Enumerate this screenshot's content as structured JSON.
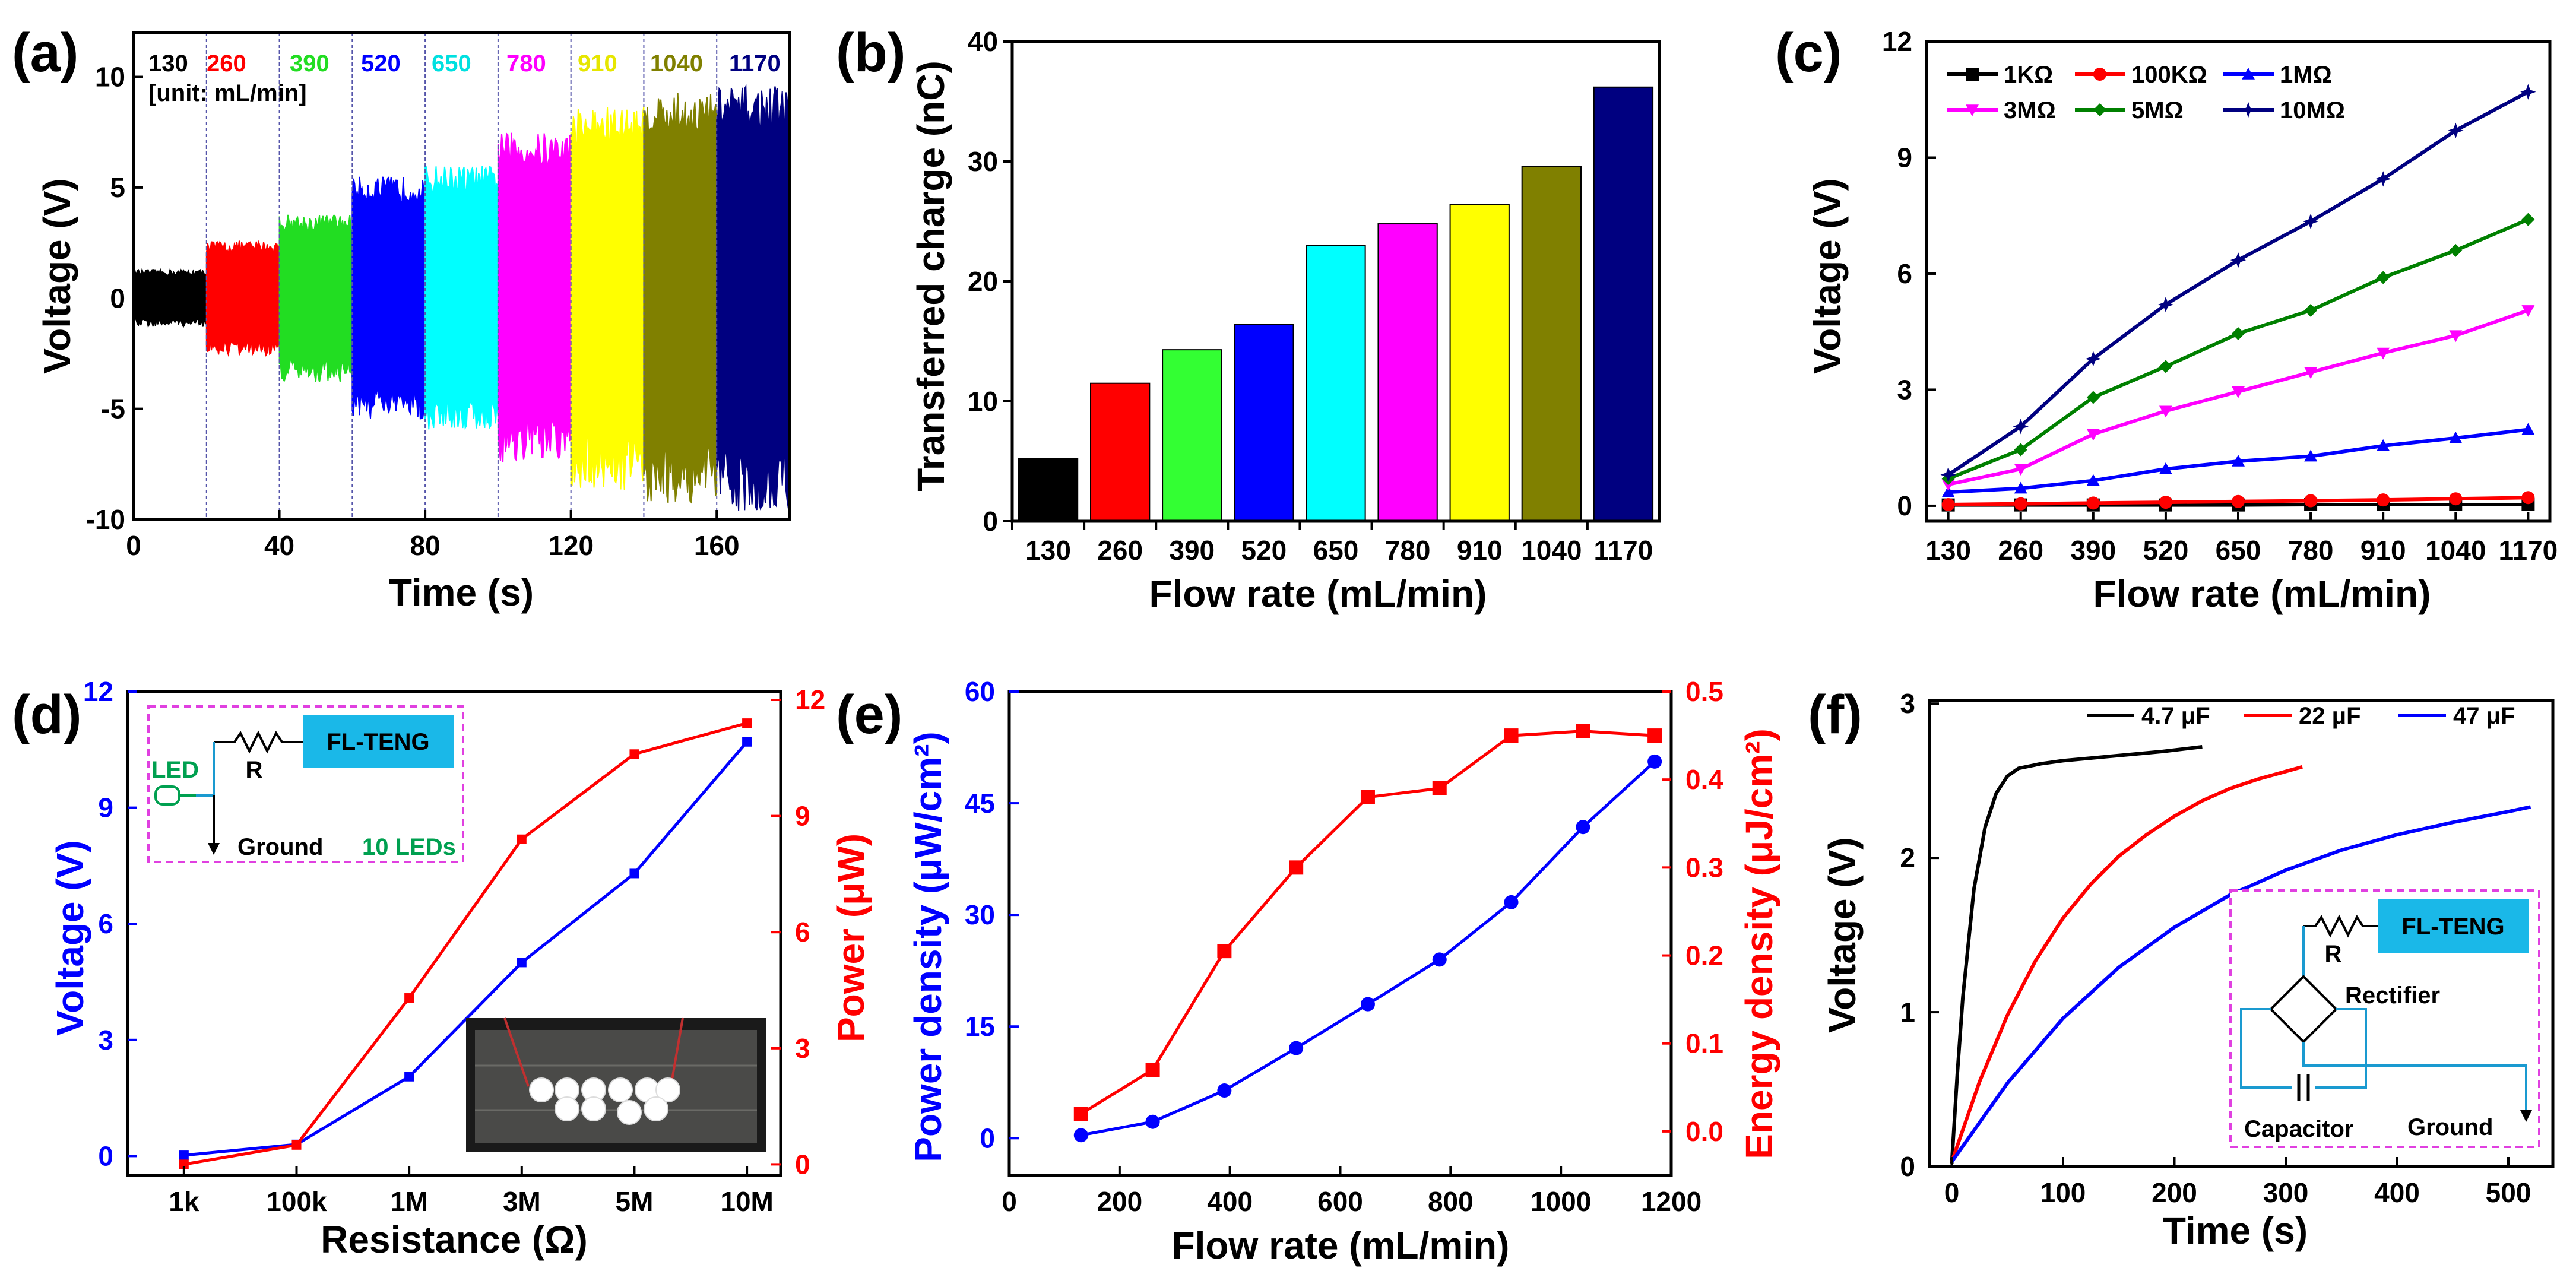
{
  "chart_data": [
    {
      "panel": "(a)",
      "type": "area",
      "xlabel": "Time (s)",
      "ylabel": "Voltage (V)",
      "xlim": [
        0,
        180
      ],
      "ylim": [
        -10,
        12
      ],
      "xticks": [
        "0",
        "40",
        "80",
        "120",
        "160"
      ],
      "yticks": [
        "-10",
        "-5",
        "0",
        "5",
        "10"
      ],
      "legend_title": "[unit: mL/min]",
      "segments": [
        {
          "label": "130",
          "color": "#000000",
          "t0": 0,
          "t1": 20,
          "amp": 1.3
        },
        {
          "label": "260",
          "color": "#ff0000",
          "t0": 20,
          "t1": 40,
          "amp": 2.6
        },
        {
          "label": "390",
          "color": "#22dd22",
          "t0": 40,
          "t1": 60,
          "amp": 3.8
        },
        {
          "label": "520",
          "color": "#0000ff",
          "t0": 60,
          "t1": 80,
          "amp": 5.5
        },
        {
          "label": "650",
          "color": "#00ffff",
          "t0": 80,
          "t1": 100,
          "amp": 6.0
        },
        {
          "label": "780",
          "color": "#ff00ff",
          "t0": 100,
          "t1": 120,
          "amp": 7.5
        },
        {
          "label": "910",
          "color": "#ffff00",
          "t0": 120,
          "t1": 140,
          "amp": 8.7
        },
        {
          "label": "1040",
          "color": "#808000",
          "t0": 140,
          "t1": 160,
          "amp": 9.3
        },
        {
          "label": "1170",
          "color": "#000080",
          "t0": 160,
          "t1": 180,
          "amp": 9.6
        }
      ]
    },
    {
      "panel": "(b)",
      "type": "bar",
      "xlabel": "Flow rate (mL/min)",
      "ylabel": "Transferred charge (nC)",
      "ylim": [
        0,
        40
      ],
      "yticks": [
        "0",
        "10",
        "20",
        "30",
        "40"
      ],
      "categories": [
        "130",
        "260",
        "390",
        "520",
        "650",
        "780",
        "910",
        "1040",
        "1170"
      ],
      "values": [
        5.2,
        11.5,
        14.3,
        16.4,
        23.0,
        24.8,
        26.4,
        29.6,
        36.2
      ],
      "colors": [
        "#000000",
        "#ff0000",
        "#33ff33",
        "#0000ff",
        "#00ffff",
        "#ff00ff",
        "#ffff00",
        "#808000",
        "#000080"
      ]
    },
    {
      "panel": "(c)",
      "type": "line",
      "xlabel": "Flow rate (mL/min)",
      "ylabel": "Voltage (V)",
      "ylim": [
        0,
        12
      ],
      "yticks": [
        "0",
        "3",
        "6",
        "9",
        "12"
      ],
      "categories": [
        "130",
        "260",
        "390",
        "520",
        "650",
        "780",
        "910",
        "1040",
        "1170"
      ],
      "series": [
        {
          "name": "1KΩ",
          "color": "#000000",
          "marker": "square",
          "values": [
            0.02,
            0.02,
            0.02,
            0.02,
            0.02,
            0.03,
            0.03,
            0.03,
            0.03
          ]
        },
        {
          "name": "100KΩ",
          "color": "#ff0000",
          "marker": "circle",
          "values": [
            0.03,
            0.05,
            0.07,
            0.09,
            0.11,
            0.13,
            0.15,
            0.18,
            0.21
          ]
        },
        {
          "name": "1MΩ",
          "color": "#0000ff",
          "marker": "triangle",
          "values": [
            0.35,
            0.45,
            0.65,
            0.95,
            1.15,
            1.28,
            1.55,
            1.75,
            1.97
          ]
        },
        {
          "name": "3MΩ",
          "color": "#ff00ff",
          "marker": "tri-down",
          "values": [
            0.55,
            0.95,
            1.85,
            2.45,
            2.95,
            3.45,
            3.95,
            4.4,
            5.05
          ]
        },
        {
          "name": "5MΩ",
          "color": "#008000",
          "marker": "diamond",
          "values": [
            0.7,
            1.45,
            2.8,
            3.6,
            4.45,
            5.05,
            5.9,
            6.6,
            7.4
          ]
        },
        {
          "name": "10MΩ",
          "color": "#000080",
          "marker": "star",
          "values": [
            0.8,
            2.05,
            3.8,
            5.2,
            6.35,
            7.35,
            8.45,
            9.7,
            10.7
          ]
        }
      ]
    },
    {
      "panel": "(d)",
      "type": "line",
      "xlabel": "Resistance (Ω)",
      "ylabel": "Voltage (V)",
      "ylabel_right": "Power (μW)",
      "ylim": [
        -0.5,
        12
      ],
      "ylim_right": [
        -0.5,
        12
      ],
      "yticks": [
        "0",
        "3",
        "6",
        "9",
        "12"
      ],
      "yticks_right": [
        "0",
        "3",
        "6",
        "9",
        "12"
      ],
      "categories": [
        "1k",
        "100k",
        "1M",
        "3M",
        "5M",
        "10M"
      ],
      "series": [
        {
          "name": "Voltage",
          "color": "#0000ff",
          "axis": "left",
          "values": [
            0.02,
            0.3,
            2.05,
            5.0,
            7.3,
            10.7
          ]
        },
        {
          "name": "Power",
          "color": "#ff0000",
          "axis": "right",
          "values": [
            0.0,
            0.5,
            4.3,
            8.4,
            10.6,
            11.4
          ]
        }
      ],
      "inset_circuit": {
        "source": "FL-TENG",
        "resistor": "R",
        "led": "LED",
        "ground": "Ground",
        "leds": "10 LEDs"
      }
    },
    {
      "panel": "(e)",
      "type": "line",
      "xlabel": "Flow rate (mL/min)",
      "ylabel": "Power density (μW/cm²)",
      "ylabel_right": "Energy density (μJ/cm²)",
      "xlim": [
        0,
        1200
      ],
      "ylim": [
        -5,
        60
      ],
      "ylim_right": [
        -0.05,
        0.5
      ],
      "xticks": [
        "0",
        "200",
        "400",
        "600",
        "800",
        "1000",
        "1200"
      ],
      "yticks": [
        "0",
        "15",
        "30",
        "45",
        "60"
      ],
      "yticks_right": [
        "0.0",
        "0.1",
        "0.2",
        "0.3",
        "0.4",
        "0.5"
      ],
      "series": [
        {
          "name": "Power density",
          "color": "#0000ff",
          "axis": "left",
          "x": [
            130,
            260,
            390,
            520,
            650,
            780,
            910,
            1040,
            1170
          ],
          "values": [
            0.4,
            2.2,
            6.4,
            12.1,
            18.0,
            24.0,
            31.7,
            41.8,
            50.6
          ]
        },
        {
          "name": "Energy density",
          "color": "#ff0000",
          "axis": "right",
          "x": [
            130,
            260,
            390,
            520,
            650,
            780,
            910,
            1040,
            1170
          ],
          "values": [
            0.02,
            0.07,
            0.205,
            0.3,
            0.38,
            0.39,
            0.45,
            0.455,
            0.45
          ]
        }
      ]
    },
    {
      "panel": "(f)",
      "type": "line",
      "xlabel": "Time (s)",
      "ylabel": "Voltage (V)",
      "xlim": [
        -20,
        540
      ],
      "ylim": [
        0,
        3
      ],
      "xticks": [
        "0",
        "100",
        "200",
        "300",
        "400",
        "500"
      ],
      "yticks": [
        "0",
        "1",
        "2",
        "3"
      ],
      "series": [
        {
          "name": "4.7 μF",
          "color": "#000000",
          "x": [
            0,
            5,
            10,
            20,
            30,
            40,
            50,
            60,
            80,
            100,
            130,
            160,
            190,
            225
          ],
          "values": [
            0.02,
            0.6,
            1.1,
            1.8,
            2.2,
            2.42,
            2.53,
            2.58,
            2.61,
            2.63,
            2.65,
            2.67,
            2.69,
            2.72
          ]
        },
        {
          "name": "22 μF",
          "color": "#ff0000",
          "x": [
            0,
            25,
            50,
            75,
            100,
            125,
            150,
            175,
            200,
            225,
            250,
            275,
            300,
            315
          ],
          "values": [
            0.03,
            0.55,
            0.98,
            1.33,
            1.61,
            1.83,
            2.01,
            2.15,
            2.27,
            2.37,
            2.45,
            2.51,
            2.56,
            2.59
          ]
        },
        {
          "name": "47 μF",
          "color": "#0000ff",
          "x": [
            0,
            50,
            100,
            150,
            200,
            250,
            300,
            350,
            400,
            450,
            500,
            520
          ],
          "values": [
            0.03,
            0.54,
            0.96,
            1.29,
            1.55,
            1.76,
            1.92,
            2.05,
            2.15,
            2.23,
            2.3,
            2.33
          ]
        }
      ],
      "inset_circuit": {
        "source": "FL-TENG",
        "resistor": "R",
        "rectifier": "Rectifier",
        "capacitor": "Capacitor",
        "ground": "Ground"
      }
    }
  ]
}
